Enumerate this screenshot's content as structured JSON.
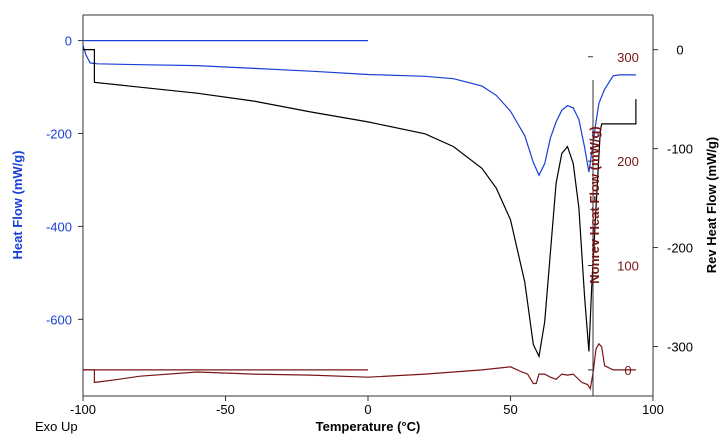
{
  "chart_data": {
    "type": "line",
    "footer_label": "Exo Up",
    "xlabel": "Temperature (°C)",
    "xlim": [
      -100,
      100
    ],
    "xticks": [
      -100,
      -50,
      0,
      50,
      100
    ],
    "axes": {
      "left": {
        "label": "Heat Flow (mW/g)",
        "color": "#1a3fd6",
        "ylim": [
          -765,
          55
        ],
        "ticks": [
          0,
          -200,
          -400,
          -600
        ]
      },
      "right_inner": {
        "label": "Nonrev Heat Flow (mW/g)",
        "color": "#7a1515",
        "ylim": [
          -25,
          340
        ],
        "ticks": [
          0,
          100,
          200,
          300
        ]
      },
      "right_outer": {
        "label": "Rev Heat Flow (mW/g)",
        "color": "#000000",
        "ylim": [
          -350,
          35
        ],
        "ticks": [
          0,
          -100,
          -200,
          -300
        ]
      }
    },
    "series": [
      {
        "axis": "left",
        "color": "#1a3fd6",
        "points": [
          [
            -100,
            -10
          ],
          [
            -99,
            -30
          ],
          [
            -97.5,
            -48
          ],
          [
            -95,
            -50
          ],
          [
            -80,
            -52
          ],
          [
            -60,
            -54
          ],
          [
            -40,
            -60
          ],
          [
            -20,
            -66
          ],
          [
            0,
            -73
          ],
          [
            20,
            -77
          ],
          [
            30,
            -82
          ],
          [
            40,
            -98
          ],
          [
            45,
            -118
          ],
          [
            50,
            -152
          ],
          [
            55,
            -205
          ],
          [
            58,
            -262
          ],
          [
            60,
            -290
          ],
          [
            62,
            -265
          ],
          [
            64,
            -210
          ],
          [
            66,
            -175
          ],
          [
            68,
            -150
          ],
          [
            70,
            -140
          ],
          [
            72,
            -145
          ],
          [
            74,
            -170
          ],
          [
            76,
            -230
          ],
          [
            77.5,
            -283
          ],
          [
            79,
            -220
          ],
          [
            80,
            -175
          ],
          [
            81,
            -135
          ],
          [
            83,
            -105
          ],
          [
            86,
            -76
          ],
          [
            88,
            -74
          ],
          [
            94,
            -74
          ]
        ]
      },
      {
        "axis": "left",
        "color": "#1a3fd6",
        "points": [
          [
            -100,
            0
          ],
          [
            0,
            0
          ]
        ]
      },
      {
        "axis": "right_outer",
        "color": "#000000",
        "points": [
          [
            -100,
            0
          ],
          [
            -96,
            0
          ],
          [
            -96,
            -33
          ],
          [
            -80,
            -38
          ],
          [
            -60,
            -44
          ],
          [
            -40,
            -52
          ],
          [
            -20,
            -63
          ],
          [
            0,
            -73
          ],
          [
            20,
            -85
          ],
          [
            30,
            -98
          ],
          [
            40,
            -120
          ],
          [
            45,
            -140
          ],
          [
            50,
            -172
          ],
          [
            55,
            -235
          ],
          [
            58,
            -298
          ],
          [
            60,
            -310
          ],
          [
            62,
            -275
          ],
          [
            64,
            -205
          ],
          [
            66,
            -135
          ],
          [
            68,
            -105
          ],
          [
            70,
            -98
          ],
          [
            72,
            -115
          ],
          [
            74,
            -160
          ],
          [
            76,
            -250
          ],
          [
            77.5,
            -305
          ],
          [
            78.5,
            -240
          ],
          [
            80,
            -160
          ],
          [
            81.5,
            -82
          ],
          [
            82,
            -75
          ],
          [
            94,
            -75
          ],
          [
            94,
            -50
          ]
        ]
      },
      {
        "axis": "right_inner",
        "color": "#7a1515",
        "points": [
          [
            -100,
            0
          ],
          [
            -96,
            0
          ],
          [
            -96,
            -12
          ],
          [
            -90,
            -10
          ],
          [
            -80,
            -6
          ],
          [
            -60,
            -2
          ],
          [
            -40,
            -4
          ],
          [
            -20,
            -5
          ],
          [
            0,
            -7
          ],
          [
            20,
            -4
          ],
          [
            40,
            0
          ],
          [
            50,
            3
          ],
          [
            54,
            -2
          ],
          [
            56,
            -4
          ],
          [
            58,
            -13
          ],
          [
            59,
            -13
          ],
          [
            60,
            -4
          ],
          [
            62,
            -4
          ],
          [
            64,
            -7
          ],
          [
            66,
            -9
          ],
          [
            68,
            -4
          ],
          [
            70,
            -5
          ],
          [
            72,
            -4
          ],
          [
            75,
            -12
          ],
          [
            77,
            -14
          ],
          [
            78,
            -18
          ],
          [
            79,
            -2
          ],
          [
            80,
            20
          ],
          [
            81,
            25
          ],
          [
            82,
            22
          ],
          [
            83,
            4
          ],
          [
            86,
            0
          ],
          [
            94,
            0
          ]
        ]
      },
      {
        "axis": "right_inner",
        "color": "#7a1515",
        "points": [
          [
            -100,
            0
          ],
          [
            0,
            0
          ]
        ]
      }
    ]
  }
}
